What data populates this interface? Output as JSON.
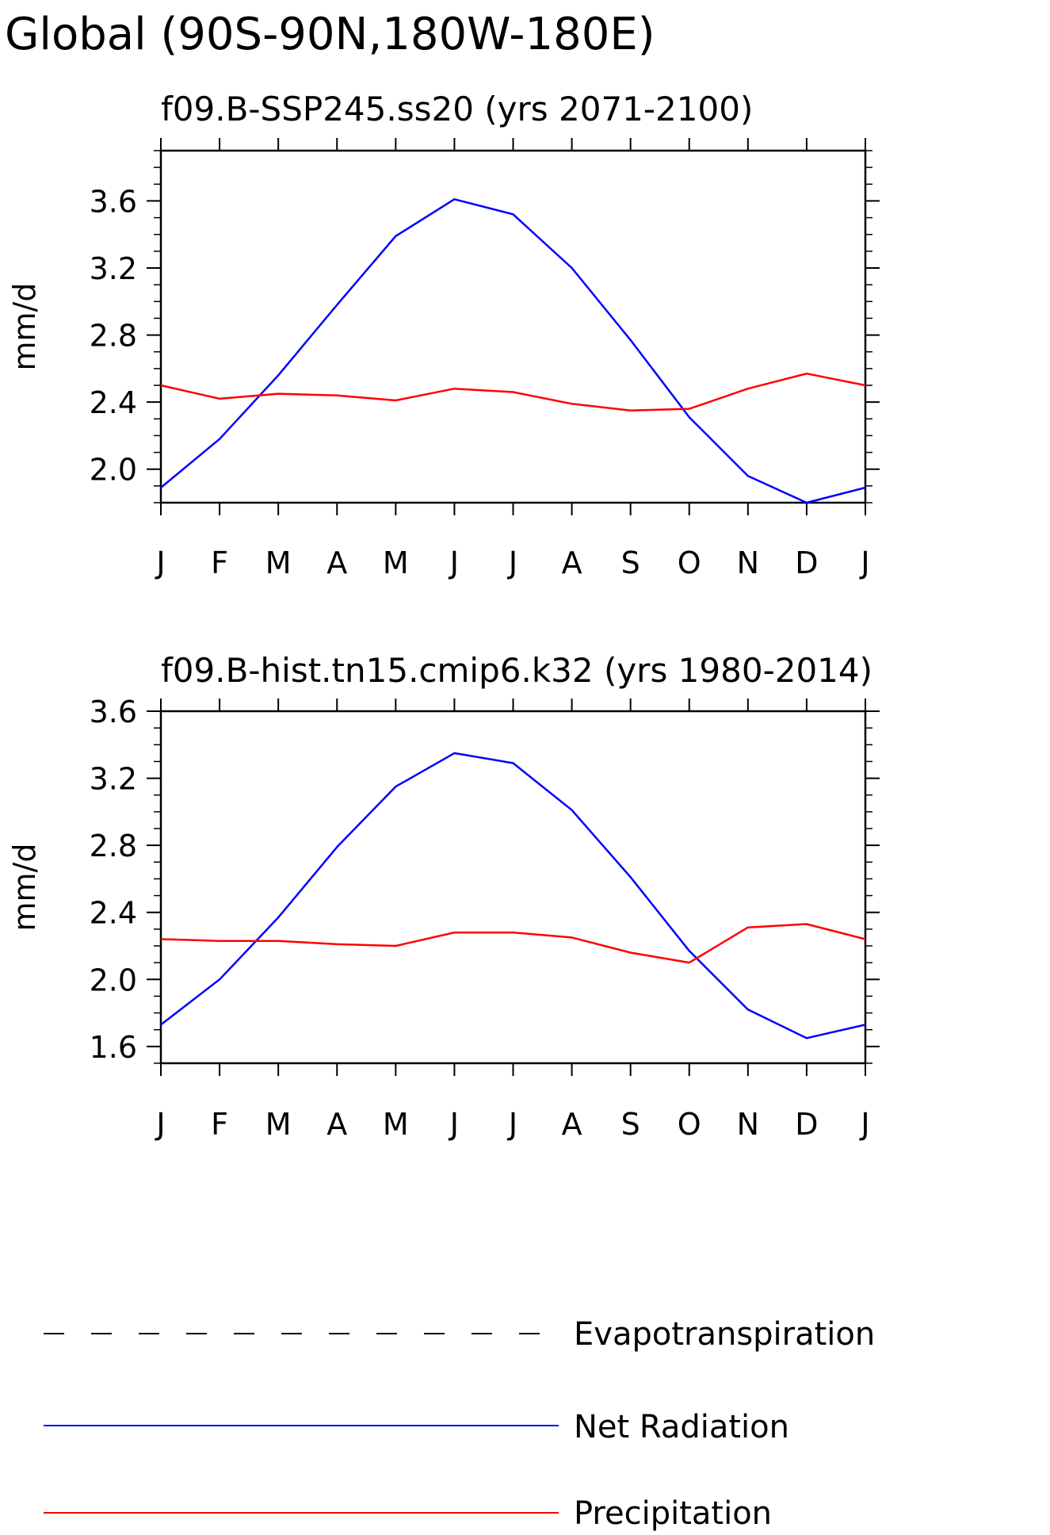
{
  "figure": {
    "title": "Global (90S-90N,180W-180E)"
  },
  "legend": [
    {
      "label": "Evapotranspiration",
      "color": "#000000",
      "style": "dashed"
    },
    {
      "label": "Net Radiation",
      "color": "#0000ff",
      "style": "solid"
    },
    {
      "label": "Precipitation",
      "color": "#ff0000",
      "style": "solid"
    }
  ],
  "chart_data": [
    {
      "type": "line",
      "title": "f09.B-SSP245.ss20 (yrs 2071-2100)",
      "xlabel": "",
      "ylabel": "mm/d",
      "categories": [
        "J",
        "F",
        "M",
        "A",
        "M",
        "J",
        "J",
        "A",
        "S",
        "O",
        "N",
        "D",
        "J"
      ],
      "ylim": [
        1.8,
        3.9
      ],
      "yticks": [
        "2.0",
        "2.4",
        "2.8",
        "3.2",
        "3.6"
      ],
      "grid": false,
      "series": [
        {
          "name": "Net Radiation",
          "color": "#0000ff",
          "values": [
            1.89,
            2.18,
            2.56,
            2.98,
            3.39,
            3.61,
            3.52,
            3.2,
            2.77,
            2.31,
            1.96,
            1.8,
            1.89
          ]
        },
        {
          "name": "Precipitation",
          "color": "#ff0000",
          "values": [
            2.5,
            2.42,
            2.45,
            2.44,
            2.41,
            2.48,
            2.46,
            2.39,
            2.35,
            2.36,
            2.48,
            2.57,
            2.5
          ]
        }
      ]
    },
    {
      "type": "line",
      "title": "f09.B-hist.tn15.cmip6.k32 (yrs 1980-2014)",
      "xlabel": "",
      "ylabel": "mm/d",
      "categories": [
        "J",
        "F",
        "M",
        "A",
        "M",
        "J",
        "J",
        "A",
        "S",
        "O",
        "N",
        "D",
        "J"
      ],
      "ylim": [
        1.5,
        3.6
      ],
      "yticks": [
        "1.6",
        "2.0",
        "2.4",
        "2.8",
        "3.2",
        "3.6"
      ],
      "grid": false,
      "series": [
        {
          "name": "Net Radiation",
          "color": "#0000ff",
          "values": [
            1.73,
            2.0,
            2.37,
            2.79,
            3.15,
            3.35,
            3.29,
            3.01,
            2.61,
            2.17,
            1.82,
            1.65,
            1.73
          ]
        },
        {
          "name": "Precipitation",
          "color": "#ff0000",
          "values": [
            2.24,
            2.23,
            2.23,
            2.21,
            2.2,
            2.28,
            2.28,
            2.25,
            2.16,
            2.1,
            2.31,
            2.33,
            2.24
          ]
        }
      ]
    }
  ]
}
